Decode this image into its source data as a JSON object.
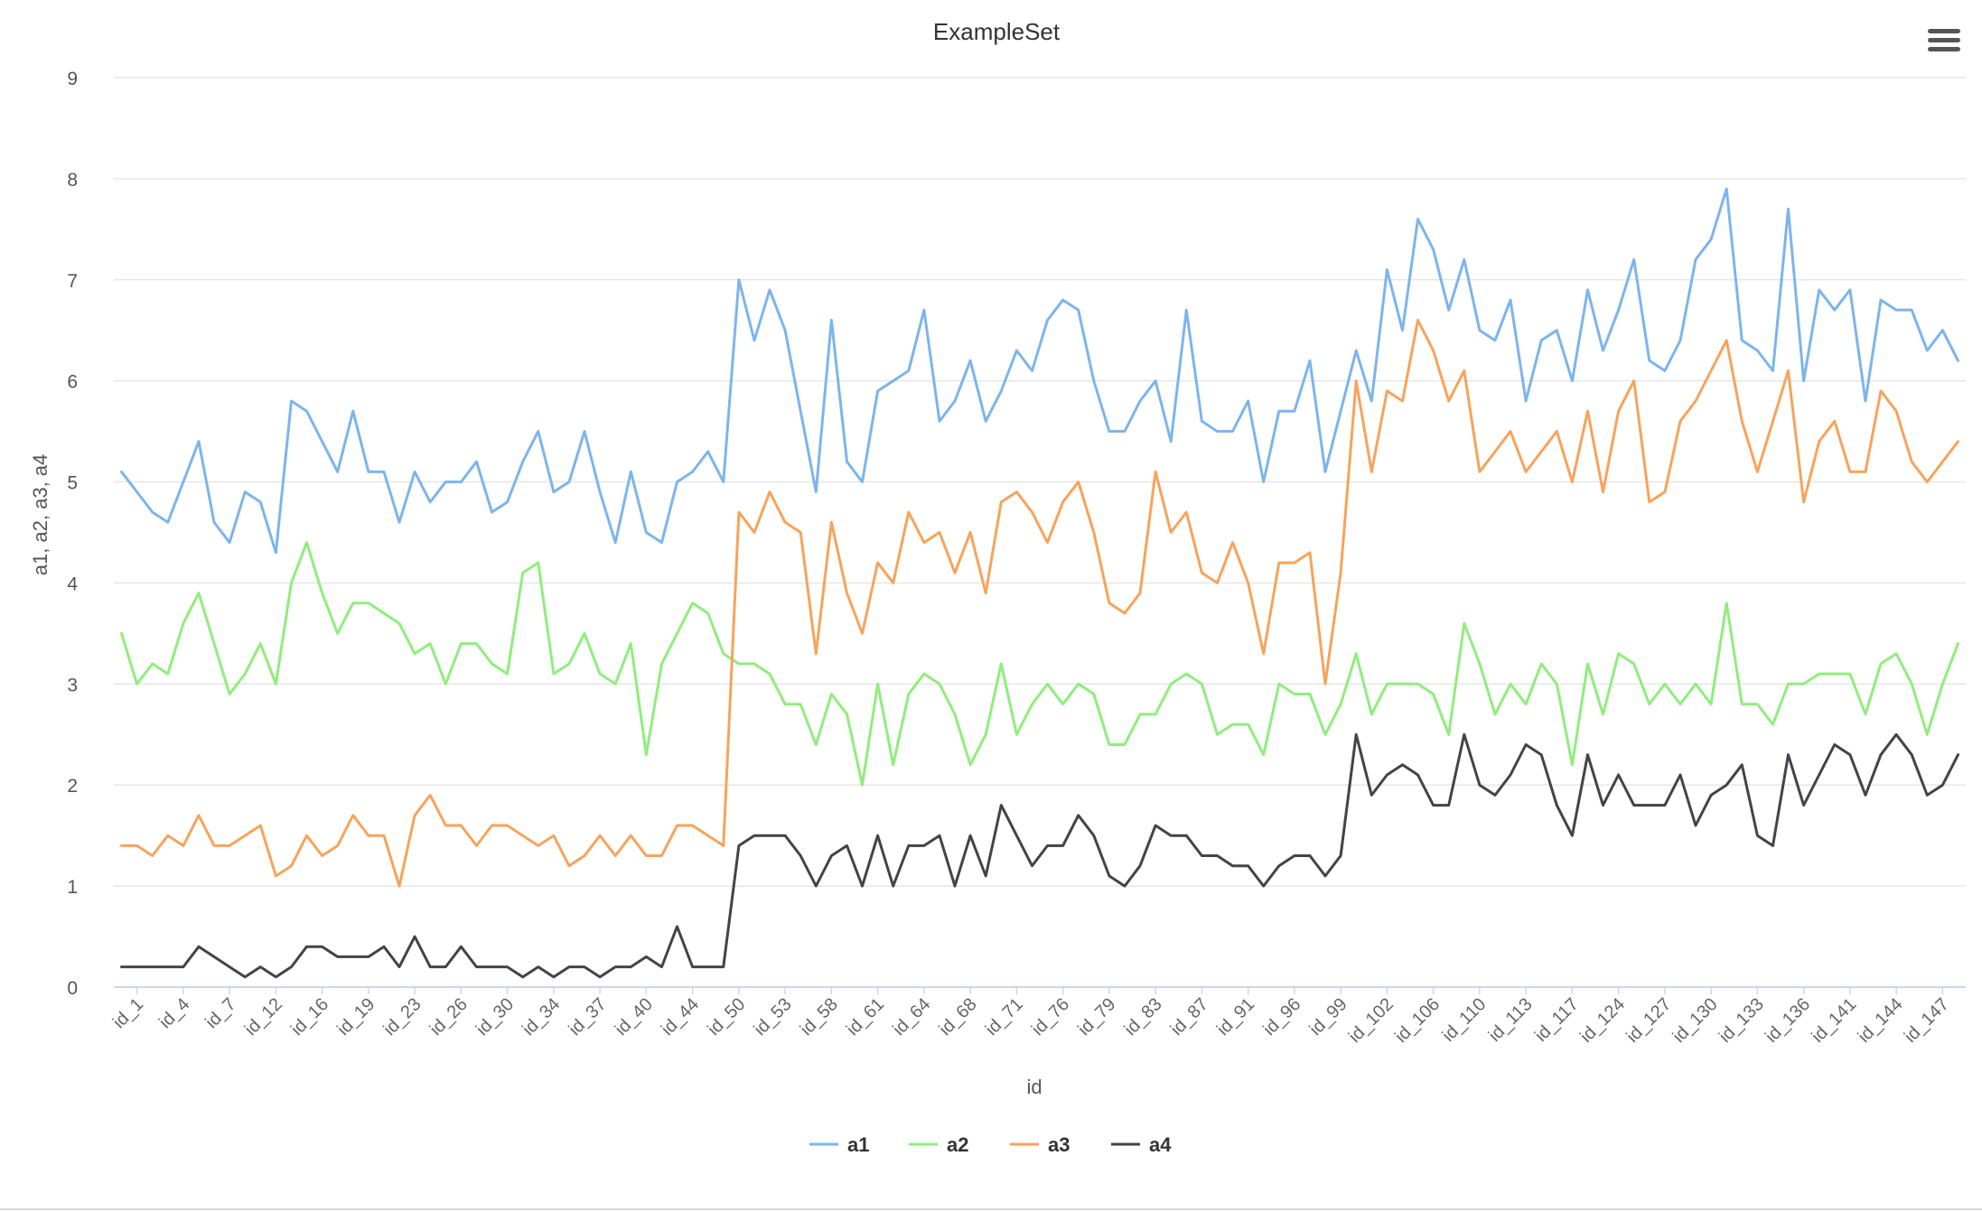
{
  "menu_icon": "hamburger-menu-icon",
  "chart_data": {
    "type": "line",
    "title": "ExampleSet",
    "xlabel": "id",
    "ylabel": "a1, a2, a3, a4",
    "ylim": [
      0,
      9
    ],
    "yticks": [
      0,
      1,
      2,
      3,
      4,
      5,
      6,
      7,
      8,
      9
    ],
    "grid": true,
    "legend_position": "bottom-center",
    "x_tick_labels": [
      "id_1",
      "id_4",
      "id_7",
      "id_12",
      "id_16",
      "id_19",
      "id_23",
      "id_26",
      "id_30",
      "id_34",
      "id_37",
      "id_40",
      "id_44",
      "id_50",
      "id_53",
      "id_58",
      "id_61",
      "id_64",
      "id_68",
      "id_71",
      "id_76",
      "id_79",
      "id_83",
      "id_87",
      "id_91",
      "id_96",
      "id_99",
      "id_102",
      "id_106",
      "id_110",
      "id_113",
      "id_117",
      "id_124",
      "id_127",
      "id_130",
      "id_133",
      "id_136",
      "id_141",
      "id_144",
      "id_147"
    ],
    "series": [
      {
        "name": "a1",
        "color": "#7cb5ec",
        "values": [
          5.1,
          4.9,
          4.7,
          4.6,
          5.0,
          5.4,
          4.6,
          4.4,
          4.9,
          4.8,
          4.3,
          5.8,
          5.7,
          5.4,
          5.1,
          5.7,
          5.1,
          5.1,
          4.6,
          5.1,
          4.8,
          5.0,
          5.0,
          5.2,
          4.7,
          4.8,
          5.2,
          5.5,
          4.9,
          5.0,
          5.5,
          4.9,
          4.4,
          5.1,
          4.5,
          4.4,
          5.0,
          5.1,
          5.3,
          5.0,
          7.0,
          6.4,
          6.9,
          6.5,
          5.7,
          4.9,
          6.6,
          5.2,
          5.0,
          5.9,
          6.0,
          6.1,
          6.7,
          5.6,
          5.8,
          6.2,
          5.6,
          5.9,
          6.3,
          6.1,
          6.6,
          6.8,
          6.7,
          6.0,
          5.5,
          5.5,
          5.8,
          6.0,
          5.4,
          6.7,
          5.6,
          5.5,
          5.5,
          5.8,
          5.0,
          5.7,
          5.7,
          6.2,
          5.1,
          5.7,
          6.3,
          5.8,
          7.1,
          6.5,
          7.6,
          7.3,
          6.7,
          7.2,
          6.5,
          6.4,
          6.8,
          5.8,
          6.4,
          6.5,
          6.0,
          6.9,
          6.3,
          6.7,
          7.2,
          6.2,
          6.1,
          6.4,
          7.2,
          7.4,
          7.9,
          6.4,
          6.3,
          6.1,
          7.7,
          6.0,
          6.9,
          6.7,
          6.9,
          5.8,
          6.8,
          6.7,
          6.7,
          6.3,
          6.5,
          6.2
        ]
      },
      {
        "name": "a2",
        "color": "#90ed7d",
        "values": [
          3.5,
          3.0,
          3.2,
          3.1,
          3.6,
          3.9,
          3.4,
          2.9,
          3.1,
          3.4,
          3.0,
          4.0,
          4.4,
          3.9,
          3.5,
          3.8,
          3.8,
          3.7,
          3.6,
          3.3,
          3.4,
          3.0,
          3.4,
          3.4,
          3.2,
          3.1,
          4.1,
          4.2,
          3.1,
          3.2,
          3.5,
          3.1,
          3.0,
          3.4,
          2.3,
          3.2,
          3.5,
          3.8,
          3.7,
          3.3,
          3.2,
          3.2,
          3.1,
          2.8,
          2.8,
          2.4,
          2.9,
          2.7,
          2.0,
          3.0,
          2.2,
          2.9,
          3.1,
          3.0,
          2.7,
          2.2,
          2.5,
          3.2,
          2.5,
          2.8,
          3.0,
          2.8,
          3.0,
          2.9,
          2.4,
          2.4,
          2.7,
          2.7,
          3.0,
          3.1,
          3.0,
          2.5,
          2.6,
          2.6,
          2.3,
          3.0,
          2.9,
          2.9,
          2.5,
          2.8,
          3.3,
          2.7,
          3.0,
          3.0,
          3.0,
          2.9,
          2.5,
          3.6,
          3.2,
          2.7,
          3.0,
          2.8,
          3.2,
          3.0,
          2.2,
          3.2,
          2.7,
          3.3,
          3.2,
          2.8,
          3.0,
          2.8,
          3.0,
          2.8,
          3.8,
          2.8,
          2.8,
          2.6,
          3.0,
          3.0,
          3.1,
          3.1,
          3.1,
          2.7,
          3.2,
          3.3,
          3.0,
          2.5,
          3.0,
          3.4
        ]
      },
      {
        "name": "a3",
        "color": "#f7a35c",
        "values": [
          1.4,
          1.4,
          1.3,
          1.5,
          1.4,
          1.7,
          1.4,
          1.4,
          1.5,
          1.6,
          1.1,
          1.2,
          1.5,
          1.3,
          1.4,
          1.7,
          1.5,
          1.5,
          1.0,
          1.7,
          1.9,
          1.6,
          1.6,
          1.4,
          1.6,
          1.6,
          1.5,
          1.4,
          1.5,
          1.2,
          1.3,
          1.5,
          1.3,
          1.5,
          1.3,
          1.3,
          1.6,
          1.6,
          1.5,
          1.4,
          4.7,
          4.5,
          4.9,
          4.6,
          4.5,
          3.3,
          4.6,
          3.9,
          3.5,
          4.2,
          4.0,
          4.7,
          4.4,
          4.5,
          4.1,
          4.5,
          3.9,
          4.8,
          4.9,
          4.7,
          4.4,
          4.8,
          5.0,
          4.5,
          3.8,
          3.7,
          3.9,
          5.1,
          4.5,
          4.7,
          4.1,
          4.0,
          4.4,
          4.0,
          3.3,
          4.2,
          4.2,
          4.3,
          3.0,
          4.1,
          6.0,
          5.1,
          5.9,
          5.8,
          6.6,
          6.3,
          5.8,
          6.1,
          5.1,
          5.3,
          5.5,
          5.1,
          5.3,
          5.5,
          5.0,
          5.7,
          4.9,
          5.7,
          6.0,
          4.8,
          4.9,
          5.6,
          5.8,
          6.1,
          6.4,
          5.6,
          5.1,
          5.6,
          6.1,
          4.8,
          5.4,
          5.6,
          5.1,
          5.1,
          5.9,
          5.7,
          5.2,
          5.0,
          5.2,
          5.4
        ]
      },
      {
        "name": "a4",
        "color": "#434348",
        "values": [
          0.2,
          0.2,
          0.2,
          0.2,
          0.2,
          0.4,
          0.3,
          0.2,
          0.1,
          0.2,
          0.1,
          0.2,
          0.4,
          0.4,
          0.3,
          0.3,
          0.3,
          0.4,
          0.2,
          0.5,
          0.2,
          0.2,
          0.4,
          0.2,
          0.2,
          0.2,
          0.1,
          0.2,
          0.1,
          0.2,
          0.2,
          0.1,
          0.2,
          0.2,
          0.3,
          0.2,
          0.6,
          0.2,
          0.2,
          0.2,
          1.4,
          1.5,
          1.5,
          1.5,
          1.3,
          1.0,
          1.3,
          1.4,
          1.0,
          1.5,
          1.0,
          1.4,
          1.4,
          1.5,
          1.0,
          1.5,
          1.1,
          1.8,
          1.5,
          1.2,
          1.4,
          1.4,
          1.7,
          1.5,
          1.1,
          1.0,
          1.2,
          1.6,
          1.5,
          1.5,
          1.3,
          1.3,
          1.2,
          1.2,
          1.0,
          1.2,
          1.3,
          1.3,
          1.1,
          1.3,
          2.5,
          1.9,
          2.1,
          2.2,
          2.1,
          1.8,
          1.8,
          2.5,
          2.0,
          1.9,
          2.1,
          2.4,
          2.3,
          1.8,
          1.5,
          2.3,
          1.8,
          2.1,
          1.8,
          1.8,
          1.8,
          2.1,
          1.6,
          1.9,
          2.0,
          2.2,
          1.5,
          1.4,
          2.3,
          1.8,
          2.1,
          2.4,
          2.3,
          1.9,
          2.3,
          2.5,
          2.3,
          1.9,
          2.0,
          2.3
        ]
      }
    ]
  }
}
